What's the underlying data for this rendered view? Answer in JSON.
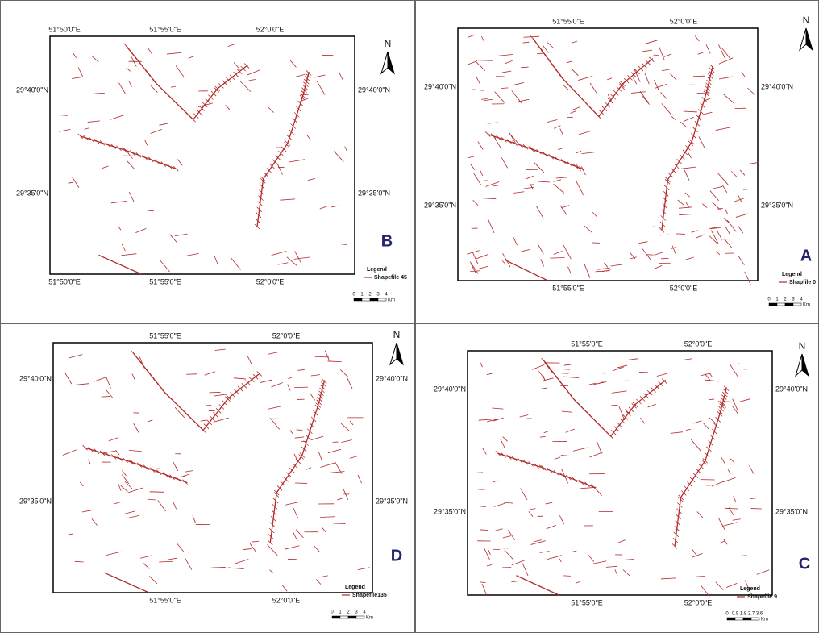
{
  "panels": [
    {
      "letter": "B",
      "north": "N",
      "top_labels": [
        "51°50'0\"E",
        "51°55'0\"E",
        "52°0'0\"E"
      ],
      "bottom_labels": [
        "51°50'0\"E",
        "51°55'0\"E",
        "52°0'0\"E"
      ],
      "left_labels": [
        "29°40'0\"N",
        "29°35'0\"N"
      ],
      "right_labels": [
        "29°40'0\"N",
        "29°35'0\"N"
      ],
      "legend_title": "Legend",
      "legend_entry": "Shapefile 45",
      "scale_labels": [
        "0",
        "1",
        "2",
        "3",
        "4",
        "Km"
      ]
    },
    {
      "letter": "A",
      "north": "N",
      "top_labels": [
        "51°55'0\"E",
        "52°0'0\"E"
      ],
      "bottom_labels": [
        "51°55'0\"E",
        "52°0'0\"E"
      ],
      "left_labels": [
        "29°40'0\"N",
        "29°35'0\"N"
      ],
      "right_labels": [
        "29°40'0\"N",
        "29°35'0\"N"
      ],
      "legend_title": "Legend",
      "legend_entry": "Shapfile 0",
      "scale_labels": [
        "0",
        "1",
        "2",
        "3",
        "4",
        "Km"
      ]
    },
    {
      "letter": "D",
      "north": "N",
      "top_labels": [
        "51°55'0\"E",
        "52°0'0\"E"
      ],
      "bottom_labels": [
        "51°55'0\"E",
        "52°0'0\"E"
      ],
      "left_labels": [
        "29°40'0\"N",
        "29°35'0\"N"
      ],
      "right_labels": [
        "29°40'0\"N",
        "29°35'0\"N"
      ],
      "legend_title": "Legend",
      "legend_entry": "Shapefile135",
      "scale_labels": [
        "0",
        "1",
        "2",
        "3",
        "4",
        "Km"
      ]
    },
    {
      "letter": "C",
      "north": "N",
      "top_labels": [
        "51°55'0\"E",
        "52°0'0\"E"
      ],
      "bottom_labels": [
        "51°55'0\"E",
        "52°0'0\"E"
      ],
      "left_labels": [
        "29°40'0\"N",
        "29°35'0\"N"
      ],
      "right_labels": [
        "29°40'0\"N",
        "29°35'0\"N"
      ],
      "legend_title": "Legend",
      "legend_entry": "Shapefile 9",
      "scale_labels": [
        "0",
        "0.9",
        "1.8",
        "2.7",
        "3.6",
        "Km"
      ]
    }
  ]
}
